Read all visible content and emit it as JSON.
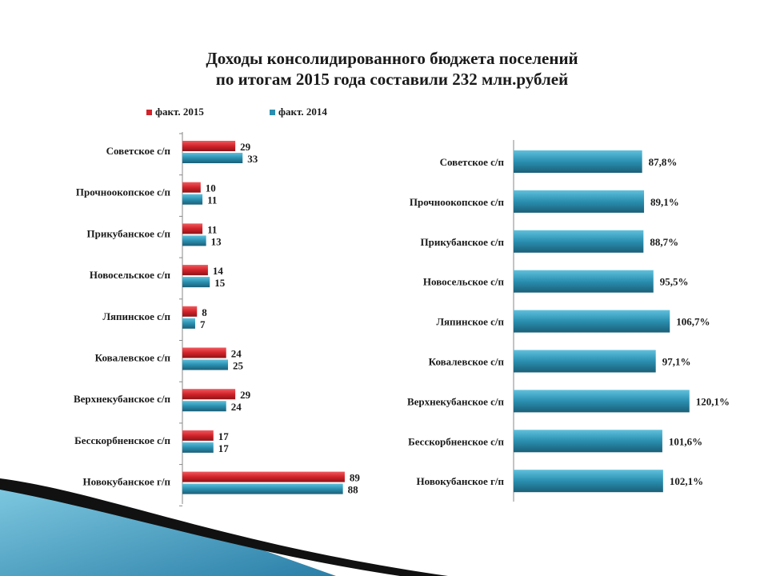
{
  "title": {
    "line1": "Доходы консолидированного бюджета поселений",
    "line2": "по итогам 2015 года составили 232 млн.рублей"
  },
  "colors": {
    "series_2015": "#d2232a",
    "series_2014": "#2a8fb0",
    "growth": "#2a8fb0"
  },
  "chart_data": [
    {
      "type": "bar",
      "orientation": "horizontal",
      "title": "",
      "xlabel": "",
      "ylabel": "",
      "legend_position": "top",
      "categories": [
        "Советское с/п",
        "Прочноокопское с/п",
        "Прикубанское с/п",
        "Новосельское с/п",
        "Ляпинское с/п",
        "Ковалевское с/п",
        "Верхнекубанское с/п",
        "Бесскорбненское с/п",
        "Новокубанское г/п"
      ],
      "series": [
        {
          "name": "факт. 2015",
          "values": [
            29,
            10,
            11,
            14,
            8,
            24,
            29,
            17,
            89
          ]
        },
        {
          "name": "факт. 2014",
          "values": [
            33,
            11,
            13,
            15,
            7,
            25,
            24,
            17,
            88
          ]
        }
      ],
      "xlim": [
        0,
        100
      ],
      "grid": false
    },
    {
      "type": "bar",
      "orientation": "horizontal",
      "title": "",
      "xlabel": "",
      "ylabel": "",
      "categories": [
        "Советское с/п",
        "Прочноокопское с/п",
        "Прикубанское с/п",
        "Новосельское с/п",
        "Ляпинское с/п",
        "Ковалевское с/п",
        "Верхнекубанское с/п",
        "Бесскорбненское с/п",
        "Новокубанское г/п"
      ],
      "values": [
        87.8,
        89.1,
        88.7,
        95.5,
        106.7,
        97.1,
        120.1,
        101.6,
        102.1
      ],
      "labels": [
        "87,8%",
        "89,1%",
        "88,7%",
        "95,5%",
        "106,7%",
        "97,1%",
        "120,1%",
        "101,6%",
        "102,1%"
      ],
      "xlim": [
        0,
        140
      ],
      "grid": false
    }
  ]
}
